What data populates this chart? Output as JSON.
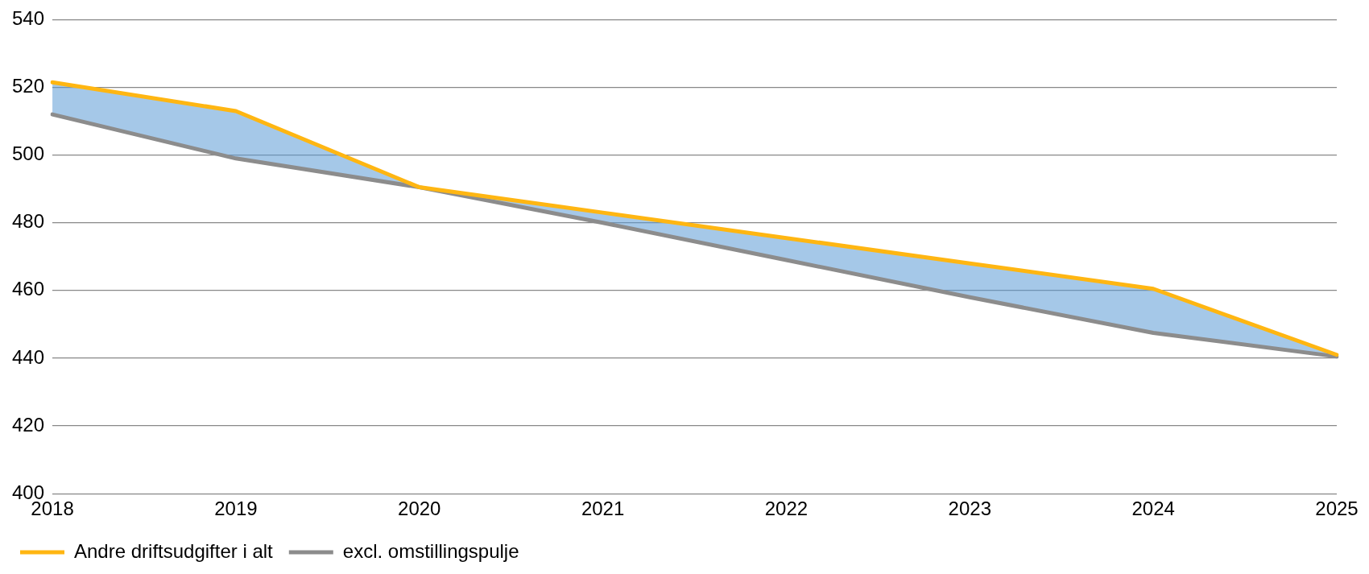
{
  "chart_data": {
    "type": "line",
    "categories": [
      "2018",
      "2019",
      "2020",
      "2021",
      "2022",
      "2023",
      "2024",
      "2025"
    ],
    "series": [
      {
        "name": "Andre driftsudgifter i alt",
        "color": "#ffb612",
        "values": [
          521.5,
          513,
          490.5,
          483,
          475.5,
          468,
          460.5,
          441
        ]
      },
      {
        "name": "excl. omstillingspulje",
        "color": "#8c8c8c",
        "values": [
          512,
          499,
          490.5,
          480,
          469,
          458,
          447.5,
          440.5
        ],
        "lower": [
          512,
          499,
          490.5,
          480,
          469,
          458,
          447.5,
          440.5
        ],
        "upper": [
          521.5,
          513,
          490.5,
          483,
          475.5,
          468,
          460.5,
          441
        ]
      }
    ],
    "ylim": [
      400,
      540
    ],
    "yticks": [
      400,
      420,
      440,
      460,
      480,
      500,
      520,
      540
    ],
    "grid": "y",
    "legend": "bottom left",
    "marker": "none",
    "line_style": "solid"
  }
}
